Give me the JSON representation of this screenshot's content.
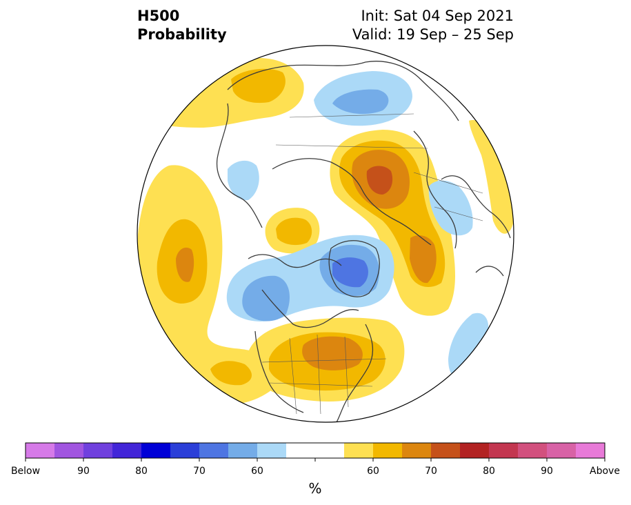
{
  "title": {
    "variable": "H500",
    "metric": "Probability",
    "init": "Init: Sat 04 Sep 2021",
    "valid": "Valid: 19 Sep – 25 Sep"
  },
  "colorbar": {
    "units": "%",
    "labels": [
      "Below",
      "90",
      "80",
      "70",
      "60",
      "60",
      "70",
      "80",
      "90",
      "Above"
    ],
    "colors": [
      "#d67ae8",
      "#a155e0",
      "#7040de",
      "#4225d8",
      "#0000d6",
      "#2b3fd8",
      "#4e75e2",
      "#74ace8",
      "#abd9f7",
      "#ffffff",
      "#ffffff",
      "#fee052",
      "#f2b800",
      "#dc860f",
      "#c5511a",
      "#b22222",
      "#c33650",
      "#d2507e",
      "#d862a6",
      "#e87ad8"
    ]
  },
  "legend_categories": {
    "below_normal": "blue shades",
    "above_normal": "orange/red shades",
    "near_normal": "white"
  }
}
